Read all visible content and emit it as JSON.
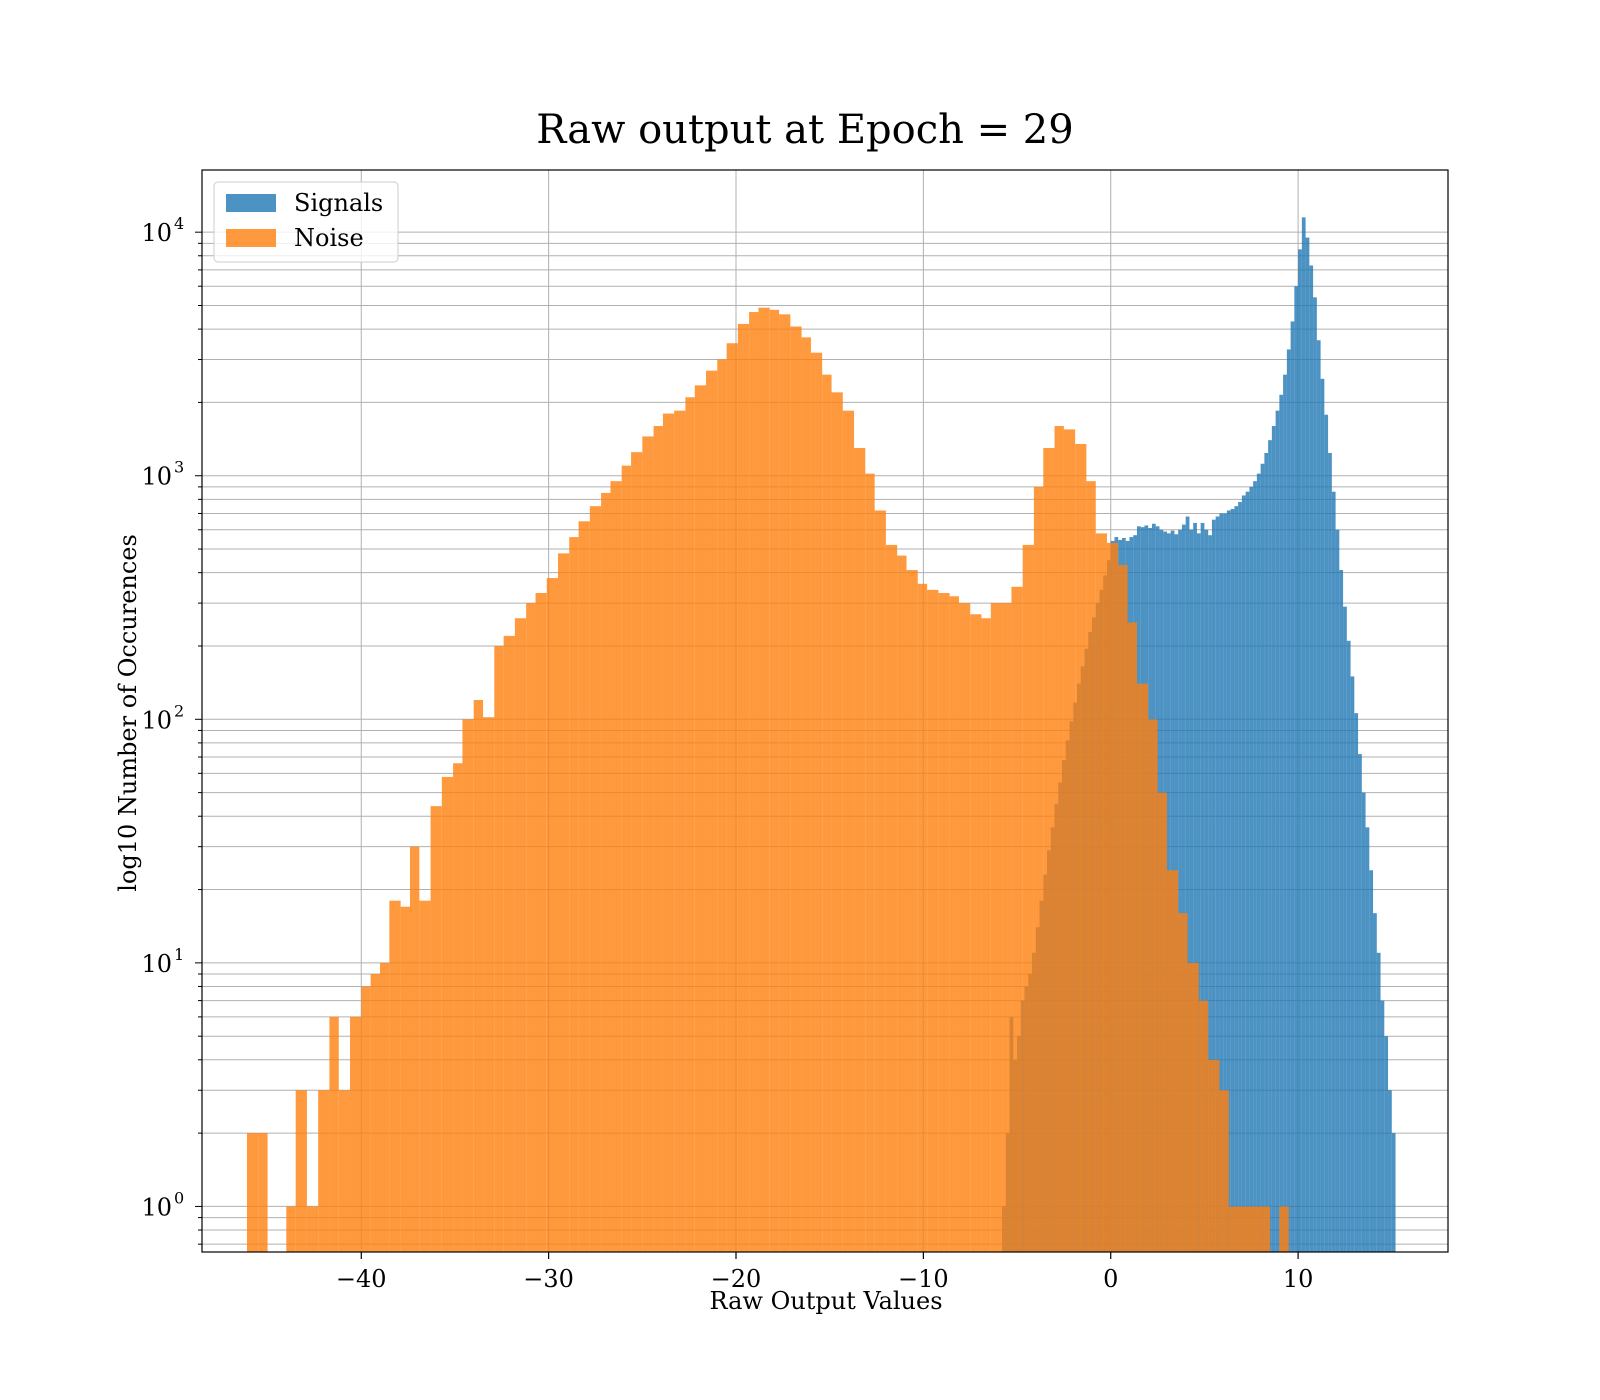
{
  "chart_data": {
    "type": "histogram",
    "title": "Raw output at Epoch = 29",
    "xlabel": "Raw Output Values",
    "ylabel": "log10 Number of Occurences",
    "xlim": [
      -48.5,
      18
    ],
    "ylim": [
      0.65,
      18000
    ],
    "yscale": "log",
    "grid": true,
    "legend_position": "top-left",
    "x_ticks": [
      {
        "value": -40,
        "label": "−40"
      },
      {
        "value": -30,
        "label": "−30"
      },
      {
        "value": -20,
        "label": "−20"
      },
      {
        "value": -10,
        "label": "−10"
      },
      {
        "value": 0,
        "label": "0"
      },
      {
        "value": 10,
        "label": "10"
      }
    ],
    "y_ticks": [
      {
        "value": 1,
        "base": "10",
        "exp": "0"
      },
      {
        "value": 10,
        "base": "10",
        "exp": "1"
      },
      {
        "value": 100,
        "base": "10",
        "exp": "2"
      },
      {
        "value": 1000,
        "base": "10",
        "exp": "3"
      },
      {
        "value": 10000,
        "base": "10",
        "exp": "4"
      }
    ],
    "series": [
      {
        "name": "Signals",
        "color": "#1f77b4",
        "alpha": 0.8,
        "bins": [
          [
            -5.8,
            -5.6,
            1
          ],
          [
            -5.6,
            -5.4,
            2
          ],
          [
            -5.4,
            -5.2,
            6
          ],
          [
            -5.2,
            -5.0,
            4
          ],
          [
            -5.0,
            -4.8,
            5
          ],
          [
            -4.8,
            -4.6,
            7
          ],
          [
            -4.6,
            -4.4,
            8
          ],
          [
            -4.4,
            -4.2,
            9
          ],
          [
            -4.2,
            -4.0,
            11
          ],
          [
            -4.0,
            -3.8,
            14
          ],
          [
            -3.8,
            -3.6,
            18
          ],
          [
            -3.6,
            -3.4,
            23
          ],
          [
            -3.4,
            -3.2,
            29
          ],
          [
            -3.2,
            -3.0,
            36
          ],
          [
            -3.0,
            -2.8,
            45
          ],
          [
            -2.8,
            -2.6,
            55
          ],
          [
            -2.6,
            -2.4,
            68
          ],
          [
            -2.4,
            -2.2,
            82
          ],
          [
            -2.2,
            -2.0,
            98
          ],
          [
            -2.0,
            -1.8,
            117
          ],
          [
            -1.8,
            -1.6,
            140
          ],
          [
            -1.6,
            -1.4,
            165
          ],
          [
            -1.4,
            -1.2,
            195
          ],
          [
            -1.2,
            -1.0,
            228
          ],
          [
            -1.0,
            -0.8,
            262
          ],
          [
            -0.8,
            -0.6,
            300
          ],
          [
            -0.6,
            -0.4,
            340
          ],
          [
            -0.4,
            -0.2,
            390
          ],
          [
            -0.2,
            0.0,
            450
          ],
          [
            0.0,
            0.2,
            540
          ],
          [
            0.2,
            0.4,
            560
          ],
          [
            0.4,
            0.6,
            545
          ],
          [
            0.6,
            0.8,
            555
          ],
          [
            0.8,
            1.0,
            540
          ],
          [
            1.0,
            1.2,
            560
          ],
          [
            1.2,
            1.4,
            570
          ],
          [
            1.4,
            1.6,
            620
          ],
          [
            1.6,
            1.8,
            615
          ],
          [
            1.8,
            2.0,
            625
          ],
          [
            2.0,
            2.2,
            610
          ],
          [
            2.2,
            2.4,
            635
          ],
          [
            2.4,
            2.6,
            620
          ],
          [
            2.6,
            2.8,
            600
          ],
          [
            2.8,
            3.0,
            590
          ],
          [
            3.0,
            3.2,
            580
          ],
          [
            3.2,
            3.4,
            595
          ],
          [
            3.4,
            3.6,
            575
          ],
          [
            3.6,
            3.8,
            600
          ],
          [
            3.8,
            4.0,
            630
          ],
          [
            4.0,
            4.2,
            680
          ],
          [
            4.2,
            4.4,
            600
          ],
          [
            4.4,
            4.6,
            640
          ],
          [
            4.6,
            4.8,
            580
          ],
          [
            4.8,
            5.0,
            640
          ],
          [
            5.0,
            5.2,
            600
          ],
          [
            5.2,
            5.4,
            570
          ],
          [
            5.4,
            5.6,
            660
          ],
          [
            5.6,
            5.8,
            680
          ],
          [
            5.8,
            6.0,
            700
          ],
          [
            6.0,
            6.2,
            700
          ],
          [
            6.2,
            6.4,
            720
          ],
          [
            6.4,
            6.6,
            730
          ],
          [
            6.6,
            6.8,
            750
          ],
          [
            6.8,
            7.0,
            780
          ],
          [
            7.0,
            7.2,
            830
          ],
          [
            7.2,
            7.4,
            860
          ],
          [
            7.4,
            7.6,
            900
          ],
          [
            7.6,
            7.8,
            950
          ],
          [
            7.8,
            8.0,
            1020
          ],
          [
            8.0,
            8.2,
            1120
          ],
          [
            8.2,
            8.4,
            1240
          ],
          [
            8.4,
            8.6,
            1400
          ],
          [
            8.6,
            8.8,
            1600
          ],
          [
            8.8,
            9.0,
            1850
          ],
          [
            9.0,
            9.2,
            2150
          ],
          [
            9.2,
            9.4,
            2600
          ],
          [
            9.4,
            9.6,
            3300
          ],
          [
            9.6,
            9.8,
            4300
          ],
          [
            9.8,
            10.0,
            6000
          ],
          [
            10.0,
            10.2,
            8500
          ],
          [
            10.2,
            10.4,
            11500
          ],
          [
            10.4,
            10.6,
            9500
          ],
          [
            10.6,
            10.8,
            7300
          ],
          [
            10.8,
            11.0,
            5400
          ],
          [
            11.0,
            11.2,
            3600
          ],
          [
            11.2,
            11.4,
            2500
          ],
          [
            11.4,
            11.6,
            1780
          ],
          [
            11.6,
            11.8,
            1240
          ],
          [
            11.8,
            12.0,
            860
          ],
          [
            12.0,
            12.2,
            600
          ],
          [
            12.2,
            12.4,
            410
          ],
          [
            12.4,
            12.6,
            290
          ],
          [
            12.6,
            12.8,
            210
          ],
          [
            12.8,
            13.0,
            150
          ],
          [
            13.0,
            13.2,
            106
          ],
          [
            13.2,
            13.4,
            72
          ],
          [
            13.4,
            13.6,
            50
          ],
          [
            13.6,
            13.8,
            36
          ],
          [
            13.8,
            14.0,
            24
          ],
          [
            14.0,
            14.2,
            16
          ],
          [
            14.2,
            14.4,
            11
          ],
          [
            14.4,
            14.6,
            7
          ],
          [
            14.6,
            14.8,
            5
          ],
          [
            14.8,
            15.0,
            3
          ],
          [
            15.0,
            15.2,
            2
          ]
        ]
      },
      {
        "name": "Noise",
        "color": "#ff7f0e",
        "alpha": 0.8,
        "bins": [
          [
            -46.1,
            -45.5,
            2
          ],
          [
            -45.5,
            -45.0,
            2
          ],
          [
            -44.0,
            -43.5,
            1
          ],
          [
            -43.5,
            -42.9,
            3
          ],
          [
            -42.9,
            -42.3,
            1
          ],
          [
            -42.3,
            -41.7,
            3
          ],
          [
            -41.7,
            -41.2,
            6
          ],
          [
            -41.2,
            -40.6,
            3
          ],
          [
            -40.6,
            -40.0,
            6
          ],
          [
            -40.0,
            -39.5,
            8
          ],
          [
            -39.5,
            -39.0,
            9
          ],
          [
            -39.0,
            -38.5,
            10
          ],
          [
            -38.5,
            -37.9,
            18
          ],
          [
            -37.9,
            -37.4,
            17
          ],
          [
            -37.4,
            -36.9,
            30
          ],
          [
            -36.9,
            -36.3,
            18
          ],
          [
            -36.3,
            -35.7,
            44
          ],
          [
            -35.7,
            -35.1,
            58
          ],
          [
            -35.1,
            -34.6,
            66
          ],
          [
            -34.6,
            -34.0,
            100
          ],
          [
            -34.0,
            -33.5,
            120
          ],
          [
            -33.5,
            -32.9,
            102
          ],
          [
            -32.9,
            -32.4,
            200
          ],
          [
            -32.4,
            -31.8,
            220
          ],
          [
            -31.8,
            -31.2,
            260
          ],
          [
            -31.2,
            -30.7,
            300
          ],
          [
            -30.7,
            -30.1,
            330
          ],
          [
            -30.1,
            -29.5,
            380
          ],
          [
            -29.5,
            -28.9,
            480
          ],
          [
            -28.9,
            -28.4,
            560
          ],
          [
            -28.4,
            -27.8,
            650
          ],
          [
            -27.8,
            -27.2,
            750
          ],
          [
            -27.2,
            -26.7,
            850
          ],
          [
            -26.7,
            -26.1,
            950
          ],
          [
            -26.1,
            -25.6,
            1100
          ],
          [
            -25.6,
            -25.0,
            1250
          ],
          [
            -25.0,
            -24.4,
            1450
          ],
          [
            -24.4,
            -23.9,
            1600
          ],
          [
            -23.9,
            -23.3,
            1800
          ],
          [
            -23.3,
            -22.7,
            1850
          ],
          [
            -22.7,
            -22.2,
            2100
          ],
          [
            -22.2,
            -21.6,
            2350
          ],
          [
            -21.6,
            -21.0,
            2700
          ],
          [
            -21.0,
            -20.5,
            3000
          ],
          [
            -20.5,
            -19.9,
            3500
          ],
          [
            -19.9,
            -19.3,
            4200
          ],
          [
            -19.3,
            -18.8,
            4700
          ],
          [
            -18.8,
            -18.2,
            4900
          ],
          [
            -18.2,
            -17.7,
            4800
          ],
          [
            -17.7,
            -17.1,
            4600
          ],
          [
            -17.1,
            -16.5,
            4100
          ],
          [
            -16.5,
            -16.0,
            3700
          ],
          [
            -16.0,
            -15.4,
            3200
          ],
          [
            -15.4,
            -14.9,
            2600
          ],
          [
            -14.9,
            -14.3,
            2200
          ],
          [
            -14.3,
            -13.7,
            1850
          ],
          [
            -13.7,
            -13.1,
            1300
          ],
          [
            -13.1,
            -12.6,
            1020
          ],
          [
            -12.6,
            -12.0,
            720
          ],
          [
            -12.0,
            -11.4,
            520
          ],
          [
            -11.4,
            -10.9,
            470
          ],
          [
            -10.9,
            -10.3,
            410
          ],
          [
            -10.3,
            -9.8,
            360
          ],
          [
            -9.8,
            -9.2,
            340
          ],
          [
            -9.2,
            -8.6,
            330
          ],
          [
            -8.6,
            -8.1,
            320
          ],
          [
            -8.1,
            -7.5,
            300
          ],
          [
            -7.5,
            -6.9,
            270
          ],
          [
            -6.9,
            -6.4,
            260
          ],
          [
            -6.4,
            -5.8,
            300
          ],
          [
            -5.8,
            -5.3,
            300
          ],
          [
            -5.3,
            -4.7,
            350
          ],
          [
            -4.7,
            -4.1,
            520
          ],
          [
            -4.1,
            -3.6,
            900
          ],
          [
            -3.6,
            -3.0,
            1300
          ],
          [
            -3.0,
            -2.5,
            1600
          ],
          [
            -2.5,
            -1.9,
            1550
          ],
          [
            -1.9,
            -1.3,
            1350
          ],
          [
            -1.3,
            -0.8,
            950
          ],
          [
            -0.8,
            -0.2,
            580
          ],
          [
            -0.2,
            0.4,
            530
          ],
          [
            0.4,
            0.9,
            430
          ],
          [
            0.9,
            1.4,
            250
          ],
          [
            1.4,
            2.0,
            140
          ],
          [
            2.0,
            2.5,
            100
          ],
          [
            2.5,
            3.0,
            50
          ],
          [
            3.0,
            3.6,
            24
          ],
          [
            3.6,
            4.1,
            16
          ],
          [
            4.1,
            4.7,
            10
          ],
          [
            4.7,
            5.2,
            7
          ],
          [
            5.2,
            5.8,
            4
          ],
          [
            5.8,
            6.3,
            3
          ],
          [
            6.3,
            6.9,
            1
          ],
          [
            6.9,
            8.0,
            1
          ],
          [
            8.0,
            8.5,
            1
          ],
          [
            9.0,
            9.5,
            1
          ]
        ]
      }
    ]
  }
}
